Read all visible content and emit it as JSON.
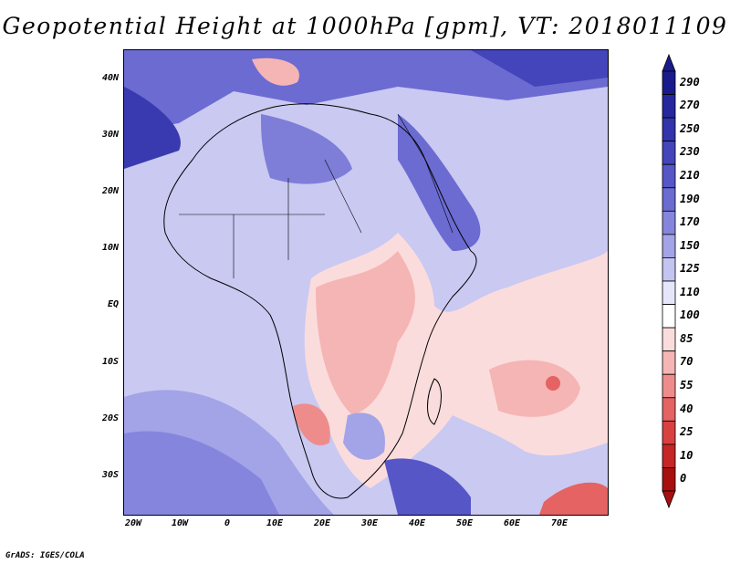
{
  "title": "Geopotential Height at 1000hPa [gpm], VT: 2018011109",
  "credit": "GrADS: IGES/COLA",
  "axes": {
    "lat_labels": [
      "40N",
      "30N",
      "20N",
      "10N",
      "EQ",
      "10S",
      "20S",
      "30S"
    ],
    "lon_labels": [
      "20W",
      "10W",
      "0",
      "10E",
      "20E",
      "30E",
      "40E",
      "50E",
      "60E",
      "70E"
    ]
  },
  "colorbar": {
    "levels": [
      "290",
      "270",
      "250",
      "230",
      "210",
      "190",
      "170",
      "150",
      "125",
      "110",
      "100",
      "85",
      "70",
      "55",
      "40",
      "25",
      "10",
      "0"
    ],
    "colors": [
      "#1a1a8c",
      "#26269e",
      "#3333ad",
      "#4444bb",
      "#5656c7",
      "#6b6bd2",
      "#8585dd",
      "#a3a3e7",
      "#c4c4f0",
      "#e6e6fa",
      "#ffffff",
      "#fbdcdc",
      "#f5b5b5",
      "#ee8c8c",
      "#e56363",
      "#d94141",
      "#c62626",
      "#a81010"
    ]
  }
}
